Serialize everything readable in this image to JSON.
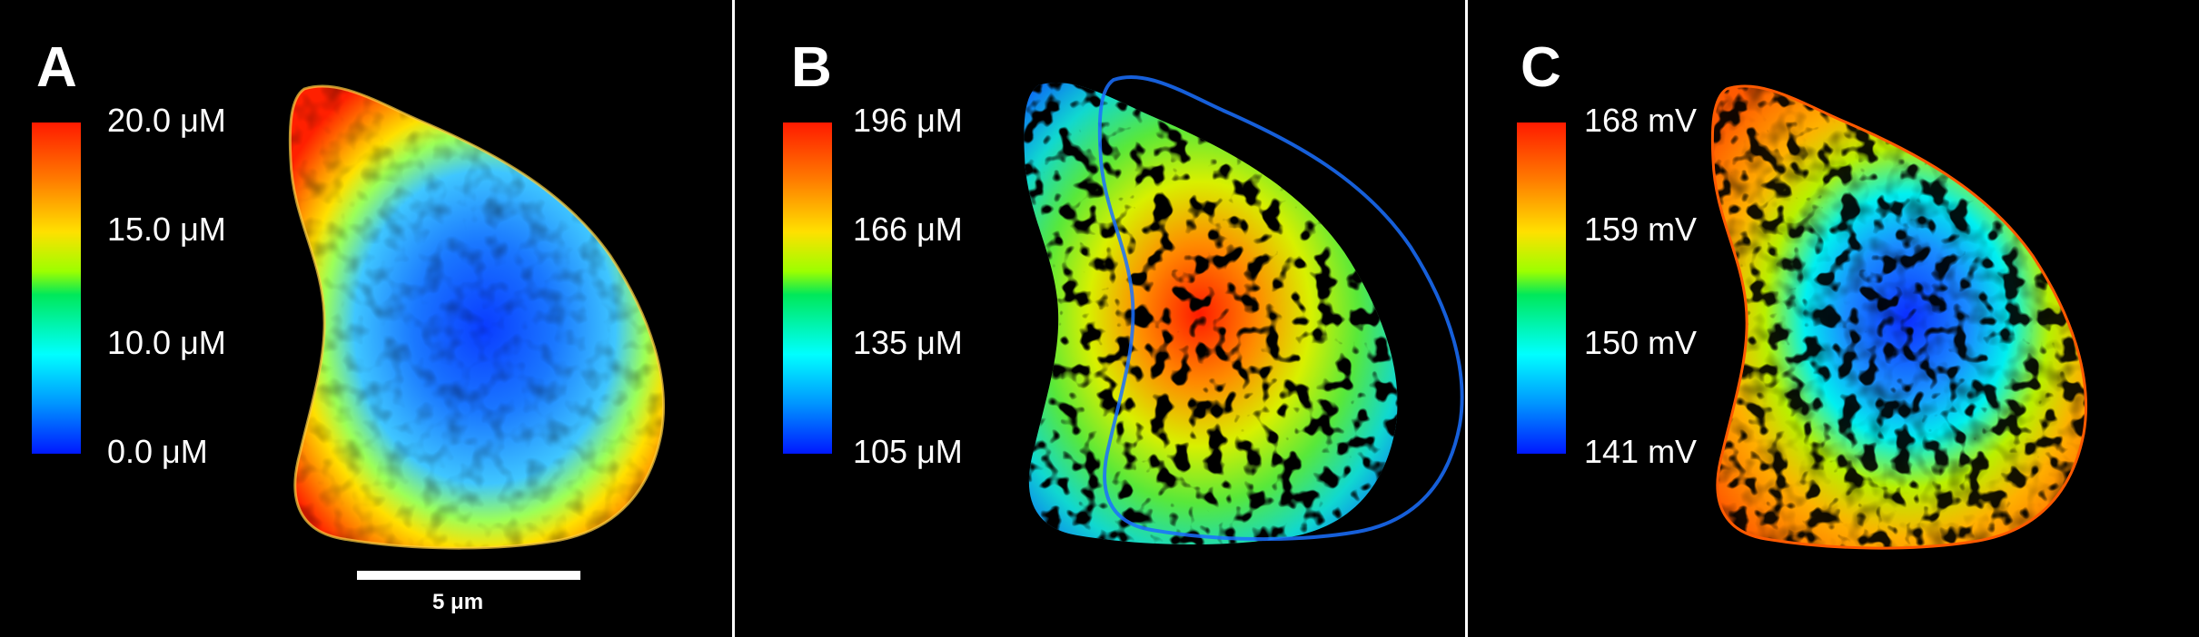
{
  "panels": [
    {
      "label": "A",
      "colorbar_ticks": [
        "20.0 μM",
        "15.0 μM",
        "10.0 μM",
        "0.0 μM"
      ],
      "scale_bar_label": "5 μm"
    },
    {
      "label": "B",
      "colorbar_ticks": [
        "196 μM",
        "166 μM",
        "135 μM",
        "105 μM"
      ]
    },
    {
      "label": "C",
      "colorbar_ticks": [
        "168 mV",
        "159 mV",
        "150 mV",
        "141 mV"
      ]
    }
  ],
  "colormap": [
    "#0018ff",
    "#00ffff",
    "#00e85a",
    "#ffe000",
    "#ff7a00",
    "#ff1a00"
  ]
}
